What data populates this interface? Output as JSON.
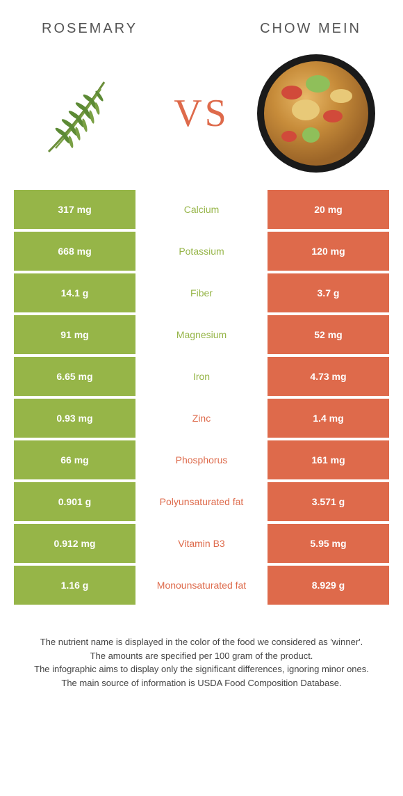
{
  "header": {
    "left_title": "ROSEMARY",
    "right_title": "CHOW MEIN"
  },
  "vs_label": "VS",
  "colors": {
    "left_bg": "#96b548",
    "right_bg": "#de6a4b",
    "mid_bg": "#ffffff",
    "row_gap_color": "#ffffff"
  },
  "rows": [
    {
      "left": "317 mg",
      "nutrient": "Calcium",
      "right": "20 mg",
      "winner": "left"
    },
    {
      "left": "668 mg",
      "nutrient": "Potassium",
      "right": "120 mg",
      "winner": "left"
    },
    {
      "left": "14.1 g",
      "nutrient": "Fiber",
      "right": "3.7 g",
      "winner": "left"
    },
    {
      "left": "91 mg",
      "nutrient": "Magnesium",
      "right": "52 mg",
      "winner": "left"
    },
    {
      "left": "6.65 mg",
      "nutrient": "Iron",
      "right": "4.73 mg",
      "winner": "left"
    },
    {
      "left": "0.93 mg",
      "nutrient": "Zinc",
      "right": "1.4 mg",
      "winner": "right"
    },
    {
      "left": "66 mg",
      "nutrient": "Phosphorus",
      "right": "161 mg",
      "winner": "right"
    },
    {
      "left": "0.901 g",
      "nutrient": "Polyunsaturated fat",
      "right": "3.571 g",
      "winner": "right"
    },
    {
      "left": "0.912 mg",
      "nutrient": "Vitamin B3",
      "right": "5.95 mg",
      "winner": "right"
    },
    {
      "left": "1.16 g",
      "nutrient": "Monounsaturated fat",
      "right": "8.929 g",
      "winner": "right"
    }
  ],
  "footer": {
    "line1": "The nutrient name is displayed in the color of the food we considered as 'winner'.",
    "line2": "The amounts are specified per 100 gram of the product.",
    "line3": "The infographic aims to display only the significant differences, ignoring minor ones.",
    "line4": "The main source of information is USDA Food Composition Database."
  }
}
